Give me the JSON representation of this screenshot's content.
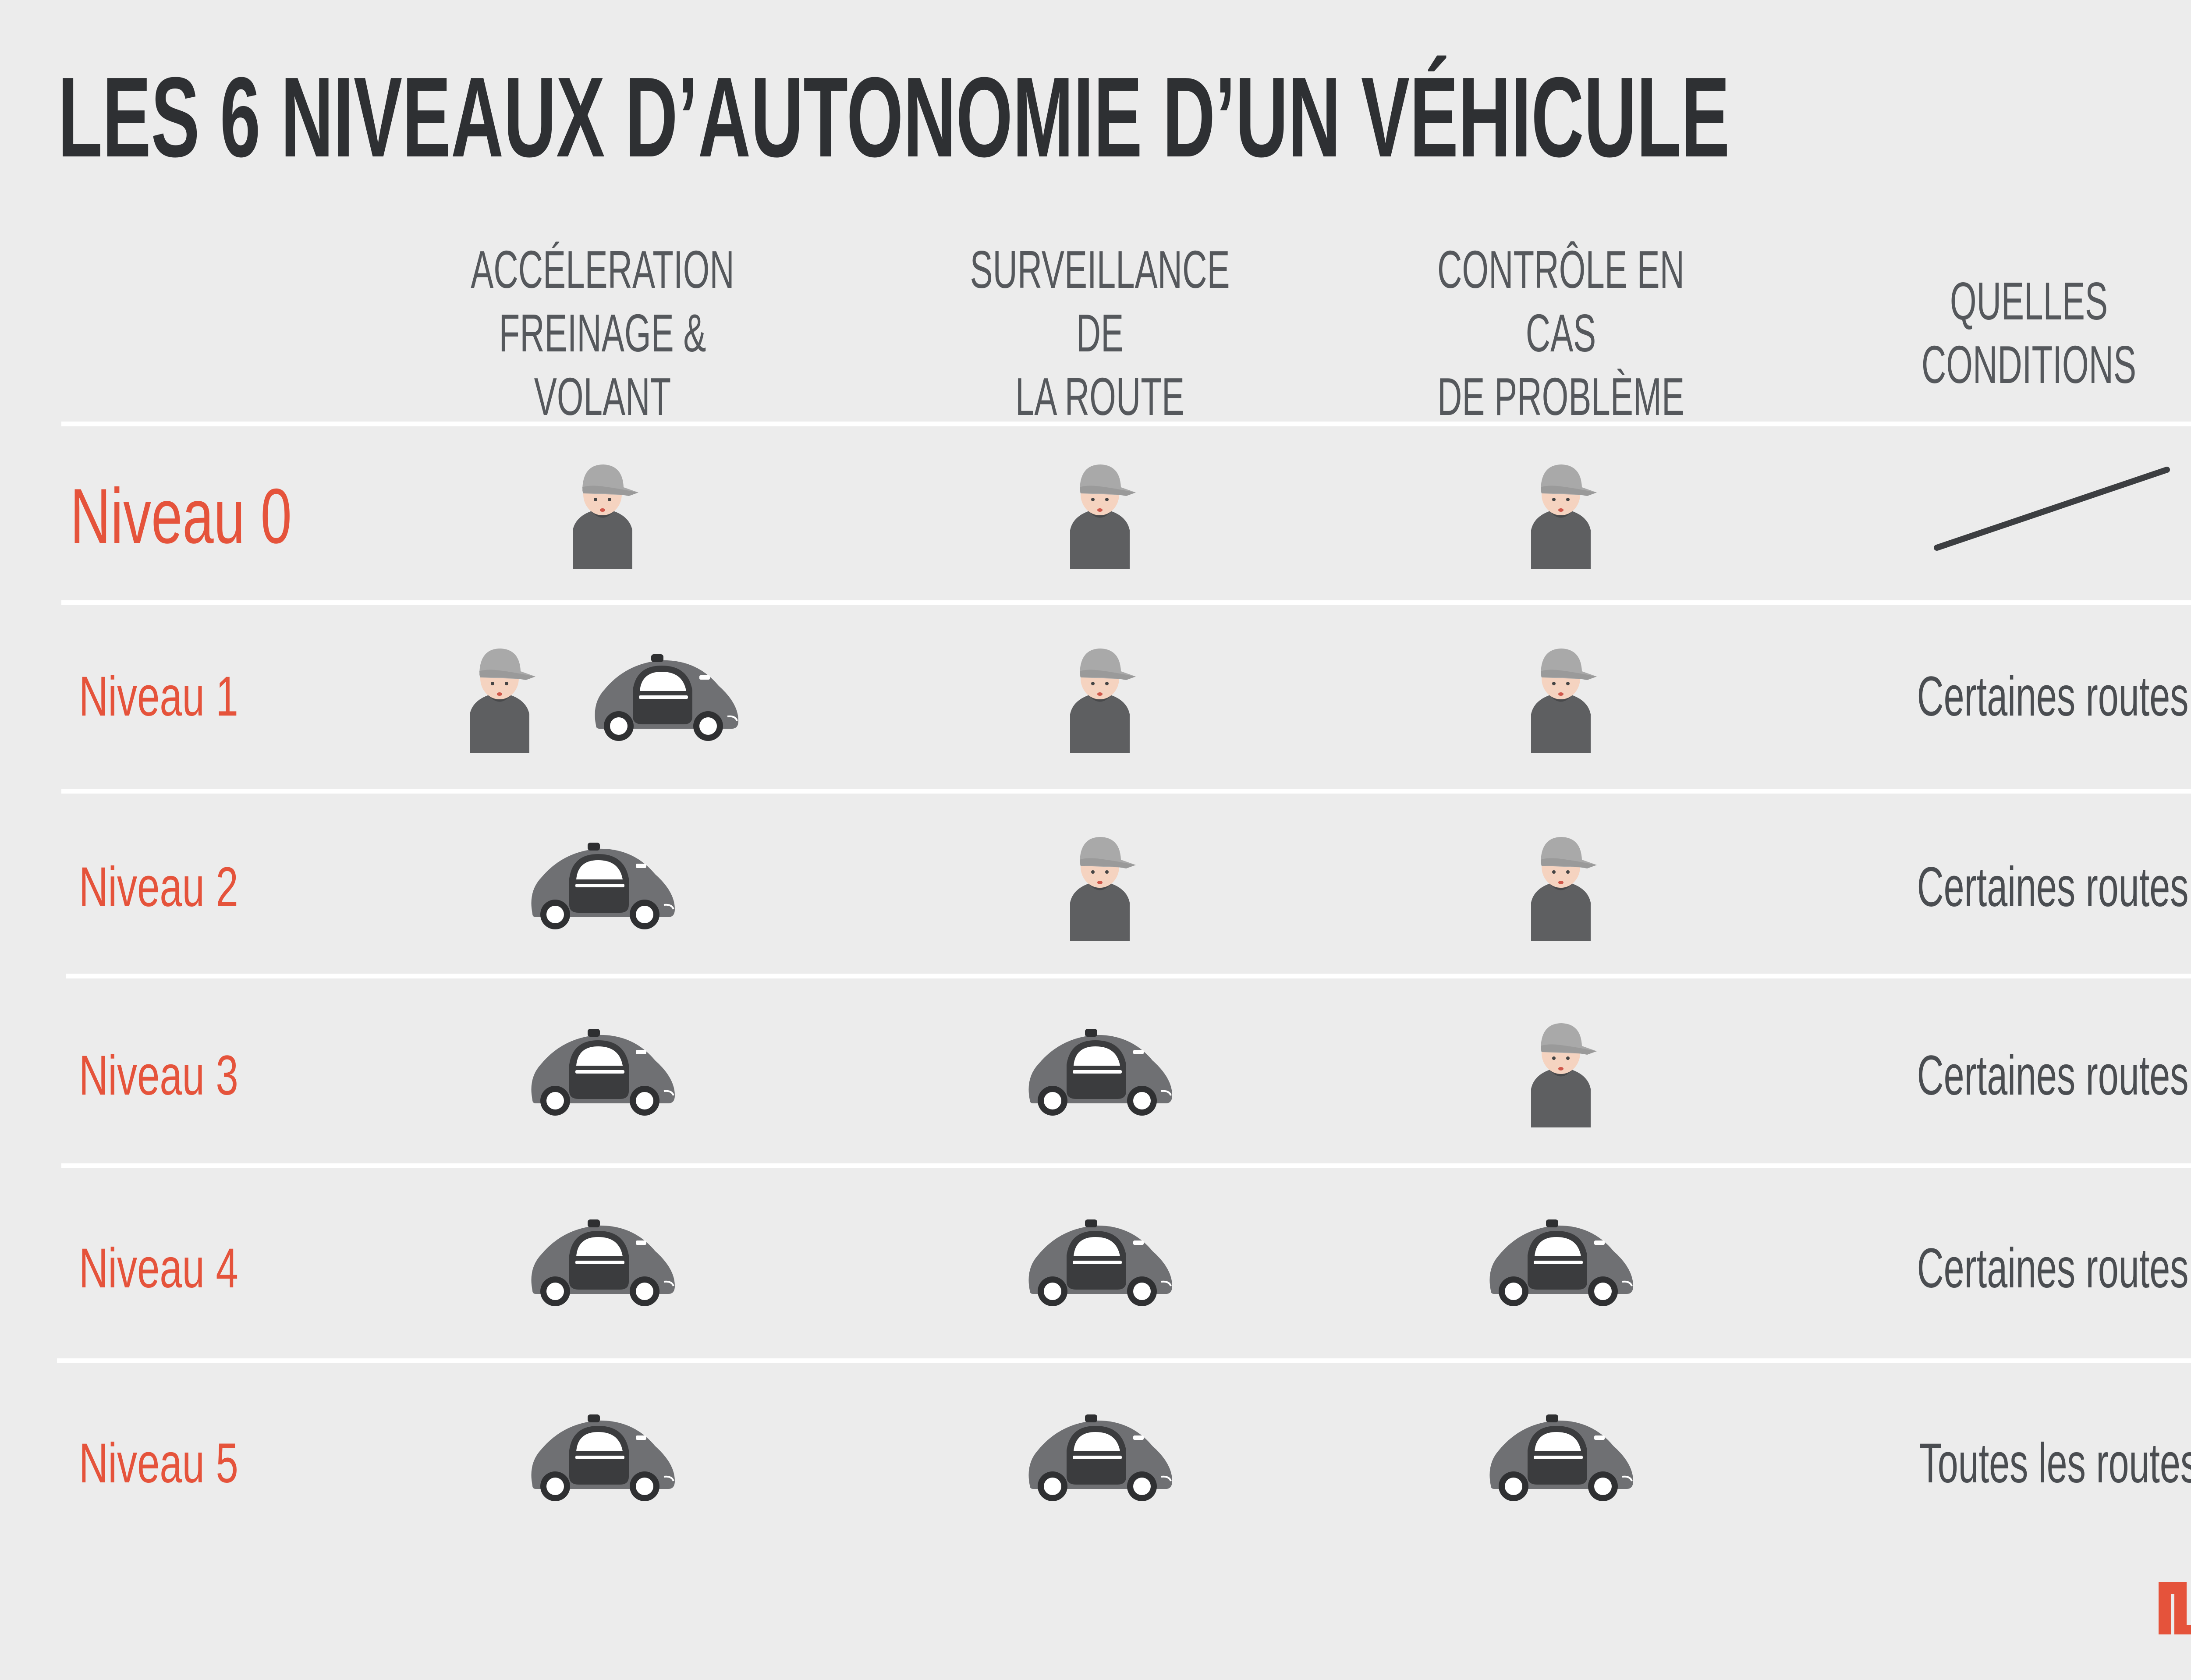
{
  "title": "LES 6 NIVEAUX D’AUTONOMIE D’UN VÉHICULE",
  "colors": {
    "background": "#ececec",
    "accent": "#e5533b",
    "text_dark": "#2e3033",
    "text_gray": "#55585c",
    "divider": "#ffffff",
    "car_body": "#6f7073",
    "car_window": "#3b3c3e",
    "person_body": "#5e5f61",
    "cap": "#a9a9a9",
    "skin": "#f5d3c0"
  },
  "columns": [
    "ACCÉLERATION\nFREINAGE & VOLANT",
    "SURVEILLANCE DE\nLA ROUTE",
    "CONTRÔLE EN CAS\nDE PROBLÈME",
    "QUELLES CONDITIONS"
  ],
  "rows": [
    {
      "level": "Niveau 0",
      "acceleration": [
        "driver-icon"
      ],
      "surveillance": [
        "driver-icon"
      ],
      "controle": [
        "driver-icon"
      ],
      "conditions": ""
    },
    {
      "level": "Niveau 1",
      "acceleration": [
        "driver-icon",
        "autonomous-car-icon"
      ],
      "surveillance": [
        "driver-icon"
      ],
      "controle": [
        "driver-icon"
      ],
      "conditions": "Certaines routes"
    },
    {
      "level": "Niveau 2",
      "acceleration": [
        "autonomous-car-icon"
      ],
      "surveillance": [
        "driver-icon"
      ],
      "controle": [
        "driver-icon"
      ],
      "conditions": "Certaines routes"
    },
    {
      "level": "Niveau 3",
      "acceleration": [
        "autonomous-car-icon"
      ],
      "surveillance": [
        "autonomous-car-icon"
      ],
      "controle": [
        "driver-icon"
      ],
      "conditions": "Certaines routes"
    },
    {
      "level": "Niveau 4",
      "acceleration": [
        "autonomous-car-icon"
      ],
      "surveillance": [
        "autonomous-car-icon"
      ],
      "controle": [
        "autonomous-car-icon"
      ],
      "conditions": "Certaines routes"
    },
    {
      "level": "Niveau 5",
      "acceleration": [
        "autonomous-car-icon"
      ],
      "surveillance": [
        "autonomous-car-icon"
      ],
      "controle": [
        "autonomous-car-icon"
      ],
      "conditions": "Toutes les routes"
    }
  ],
  "logo_icon": "publisher-logo-icon"
}
